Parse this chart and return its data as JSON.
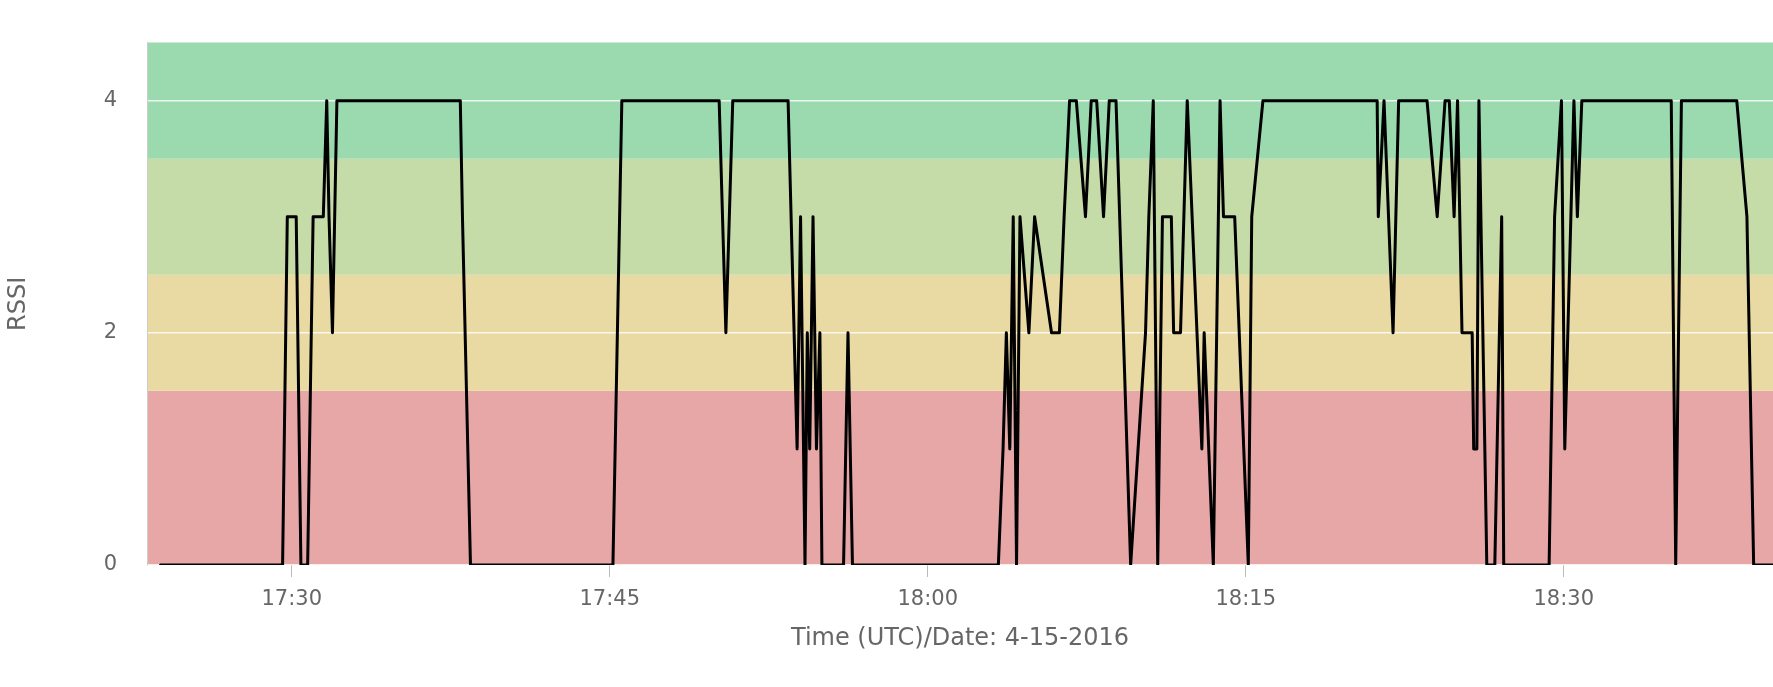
{
  "chart_data": {
    "type": "line",
    "xlabel": "Time (UTC)/Date: 4-15-2016",
    "ylabel": "RSSI",
    "xlim": [
      17.3862,
      18.6645
    ],
    "ylim": [
      0,
      4.5
    ],
    "xticks": [
      {
        "value": 17.5,
        "label": "17:30"
      },
      {
        "value": 17.75,
        "label": "17:45"
      },
      {
        "value": 18,
        "label": "18:00"
      },
      {
        "value": 18.25,
        "label": "18:15"
      },
      {
        "value": 18.5,
        "label": "18:30"
      }
    ],
    "yticks": [
      0,
      2,
      4
    ],
    "grid": "y",
    "legend": false,
    "marker": "none",
    "line_style": "solid",
    "bands": [
      {
        "axis": "y",
        "from": 0,
        "to": 1.5,
        "color": "#e8a7a7"
      },
      {
        "axis": "y",
        "from": 1.5,
        "to": 2.5,
        "color": "#e9d9a2"
      },
      {
        "axis": "y",
        "from": 2.5,
        "to": 3.5,
        "color": "#c5dba8"
      },
      {
        "axis": "y",
        "from": 3.5,
        "to": 4.5,
        "color": "#9bdaae"
      }
    ],
    "series": [
      {
        "color": "#000000",
        "x": [
          17.3968,
          17.4928,
          17.4965,
          17.5035,
          17.5072,
          17.5125,
          17.5168,
          17.5248,
          17.5275,
          17.5293,
          17.532,
          17.5355,
          17.6325,
          17.6342,
          17.6405,
          17.7525,
          17.7595,
          17.836,
          17.8413,
          17.8467,
          17.8902,
          17.8973,
          17.9,
          17.9035,
          17.9053,
          17.9072,
          17.9098,
          17.9125,
          17.9152,
          17.9168,
          17.9222,
          17.9338,
          17.9373,
          17.9408,
          18.0555,
          18.0592,
          18.0618,
          18.0645,
          18.0672,
          18.0698,
          18.0725,
          18.0795,
          18.084,
          18.0973,
          18.1035,
          18.1072,
          18.1115,
          18.1168,
          18.124,
          18.1285,
          18.1328,
          18.1382,
          18.1427,
          18.148,
          18.1595,
          18.1712,
          18.1738,
          18.1773,
          18.1808,
          18.1845,
          18.1915,
          18.1933,
          18.1987,
          18.204,
          18.2155,
          18.2173,
          18.2245,
          18.2298,
          18.2325,
          18.2413,
          18.252,
          18.2547,
          18.2635,
          18.3533,
          18.3542,
          18.3587,
          18.3658,
          18.3702,
          18.3925,
          18.4005,
          18.4067,
          18.41,
          18.4138,
          18.4165,
          18.42,
          18.428,
          18.4292,
          18.4317,
          18.4333,
          18.4395,
          18.4458,
          18.4512,
          18.4528,
          18.4885,
          18.4928,
          18.4982,
          18.5008,
          18.508,
          18.5107,
          18.5142,
          18.5845,
          18.588,
          18.5925,
          18.636,
          18.644,
          18.6493,
          18.6645
        ],
        "values": [
          0,
          0,
          3,
          3,
          0,
          0,
          3,
          3,
          4,
          3,
          2,
          4,
          4,
          3,
          0,
          0,
          4,
          4,
          2,
          4,
          4,
          1,
          3,
          0,
          2,
          1,
          3,
          1,
          2,
          0,
          0,
          0,
          2,
          0,
          0,
          1,
          2,
          1,
          3,
          0,
          3,
          2,
          3,
          2,
          2,
          3,
          4,
          4,
          3,
          4,
          4,
          3,
          4,
          4,
          0,
          2,
          3,
          4,
          0,
          3,
          3,
          2,
          2,
          4,
          1,
          2,
          0,
          4,
          3,
          3,
          0,
          3,
          4,
          4,
          3,
          4,
          2,
          4,
          4,
          3,
          4,
          4,
          3,
          4,
          2,
          2,
          1,
          1,
          4,
          0,
          0,
          3,
          0,
          0,
          3,
          4,
          1,
          4,
          3,
          4,
          4,
          0,
          4,
          4,
          3,
          0,
          0
        ]
      }
    ]
  }
}
